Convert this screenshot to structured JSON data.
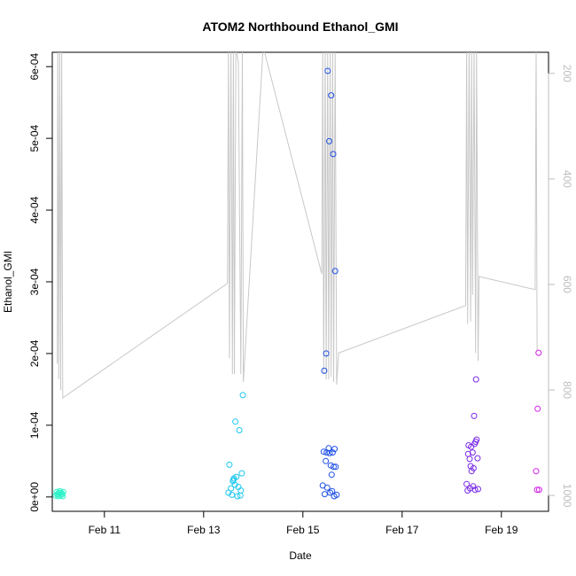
{
  "chart_data": {
    "type": "scatter",
    "title": "ATOM2 Northbound Ethanol_GMI",
    "xlabel": "Date",
    "ylabel": "Ethanol_GMI",
    "x_ticks": [
      "Feb 11",
      "Feb 13",
      "Feb 15",
      "Feb 17",
      "Feb 19"
    ],
    "y_ticks": [
      "0e+00",
      "1e-04",
      "2e-04",
      "3e-04",
      "4e-04",
      "5e-04",
      "6e-04"
    ],
    "y2_ticks": [
      "200",
      "400",
      "600",
      "800",
      "1000"
    ],
    "xlim": [
      "Feb 9.95",
      "Feb 19.95"
    ],
    "ylim": [
      -2e-05,
      0.00062
    ],
    "y2lim": [
      1030,
      160
    ],
    "y2_reversed": true,
    "grid": false,
    "points_by_flight": [
      {
        "color": "#2ef2c8",
        "points": [
          [
            "Feb 10.02",
            2e-06
          ],
          [
            "Feb 10.04",
            7e-06
          ],
          [
            "Feb 10.05",
            4e-06
          ],
          [
            "Feb 10.07",
            1e-06
          ],
          [
            "Feb 10.08",
            6e-06
          ],
          [
            "Feb 10.09",
            3e-06
          ],
          [
            "Feb 10.10",
            8e-06
          ],
          [
            "Feb 10.11",
            5e-06
          ],
          [
            "Feb 10.12",
            2e-06
          ],
          [
            "Feb 10.13",
            6e-06
          ],
          [
            "Feb 10.15",
            4e-06
          ],
          [
            "Feb 10.16",
            1e-06
          ],
          [
            "Feb 10.17",
            7e-06
          ]
        ]
      },
      {
        "color": "#1ec8f0",
        "points": [
          [
            "Feb 13.50",
            6e-06
          ],
          [
            "Feb 13.52",
            4.5e-05
          ],
          [
            "Feb 13.55",
            1.2e-05
          ],
          [
            "Feb 13.57",
            3e-06
          ],
          [
            "Feb 13.59",
            2.2e-05
          ],
          [
            "Feb 13.61",
            2.6e-05
          ],
          [
            "Feb 13.63",
            1.7e-05
          ],
          [
            "Feb 13.64",
            0.000105
          ],
          [
            "Feb 13.66",
            2.8e-05
          ],
          [
            "Feb 13.68",
            1e-06
          ],
          [
            "Feb 13.70",
            1.4e-05
          ],
          [
            "Feb 13.72",
            9.3e-05
          ],
          [
            "Feb 13.74",
            2e-06
          ],
          [
            "Feb 13.77",
            3.3e-05
          ],
          [
            "Feb 13.79",
            0.000142
          ],
          [
            "Feb 13.75",
            9e-06
          ],
          [
            "Feb 13.60",
            2.4e-05
          ]
        ]
      },
      {
        "color": "#1e50e6",
        "points": [
          [
            "Feb 15.40",
            1.6e-05
          ],
          [
            "Feb 15.42",
            6.3e-05
          ],
          [
            "Feb 15.43",
            0.000176
          ],
          [
            "Feb 15.44",
            4e-06
          ],
          [
            "Feb 15.46",
            5e-05
          ],
          [
            "Feb 15.47",
            0.0002
          ],
          [
            "Feb 15.48",
            6.2e-05
          ],
          [
            "Feb 15.49",
            1.3e-05
          ],
          [
            "Feb 15.50",
            0.000594
          ],
          [
            "Feb 15.52",
            6.8e-05
          ],
          [
            "Feb 15.53",
            0.000496
          ],
          [
            "Feb 15.54",
            6.1e-05
          ],
          [
            "Feb 15.55",
            6e-06
          ],
          [
            "Feb 15.56",
            4.4e-05
          ],
          [
            "Feb 15.57",
            0.00056
          ],
          [
            "Feb 15.58",
            3.1e-05
          ],
          [
            "Feb 15.60",
            6.2e-05
          ],
          [
            "Feb 15.61",
            0.000478
          ],
          [
            "Feb 15.62",
            4.2e-05
          ],
          [
            "Feb 15.63",
            1e-06
          ],
          [
            "Feb 15.64",
            6.7e-05
          ],
          [
            "Feb 15.65",
            0.000315
          ],
          [
            "Feb 15.66",
            4.2e-05
          ],
          [
            "Feb 15.68",
            3e-06
          ],
          [
            "Feb 15.59",
            8e-06
          ]
        ]
      },
      {
        "color": "#7a2ae6",
        "points": [
          [
            "Feb 18.30",
            1.8e-05
          ],
          [
            "Feb 18.32",
            9e-06
          ],
          [
            "Feb 18.33",
            6e-05
          ],
          [
            "Feb 18.34",
            7.2e-05
          ],
          [
            "Feb 18.36",
            5.3e-05
          ],
          [
            "Feb 18.37",
            1.2e-05
          ],
          [
            "Feb 18.38",
            4.3e-05
          ],
          [
            "Feb 18.39",
            7e-05
          ],
          [
            "Feb 18.40",
            3.6e-05
          ],
          [
            "Feb 18.42",
            6.2e-05
          ],
          [
            "Feb 18.43",
            1.5e-05
          ],
          [
            "Feb 18.44",
            4e-05
          ],
          [
            "Feb 18.45",
            0.000113
          ],
          [
            "Feb 18.46",
            7.4e-05
          ],
          [
            "Feb 18.48",
            7.7e-05
          ],
          [
            "Feb 18.49",
            0.000164
          ],
          [
            "Feb 18.50",
            8e-05
          ],
          [
            "Feb 18.52",
            5.4e-05
          ],
          [
            "Feb 18.53",
            1.1e-05
          ],
          [
            "Feb 18.47",
            1e-05
          ]
        ]
      },
      {
        "color": "#d21ee6",
        "points": [
          [
            "Feb 19.70",
            3.6e-05
          ],
          [
            "Feb 19.72",
            1e-05
          ],
          [
            "Feb 19.73",
            0.000123
          ],
          [
            "Feb 19.75",
            0.000201
          ],
          [
            "Feb 19.76",
            1e-05
          ]
        ]
      }
    ],
    "altitude_line": {
      "color": "#c8c8c8",
      "axis": "right",
      "points": [
        [
          "Feb 10.05",
          750
        ],
        [
          "Feb 10.06",
          150
        ],
        [
          "Feb 10.08",
          780
        ],
        [
          "Feb 10.10",
          150
        ],
        [
          "Feb 10.12",
          800
        ],
        [
          "Feb 10.14",
          150
        ],
        [
          "Feb 10.16",
          815
        ],
        [
          "Feb 13.48",
          598
        ],
        [
          "Feb 13.50",
          150
        ],
        [
          "Feb 13.52",
          740
        ],
        [
          "Feb 13.55",
          150
        ],
        [
          "Feb 13.58",
          770
        ],
        [
          "Feb 13.60",
          150
        ],
        [
          "Feb 13.62",
          770
        ],
        [
          "Feb 13.65",
          150
        ],
        [
          "Feb 13.70",
          180
        ],
        [
          "Feb 13.75",
          770
        ],
        [
          "Feb 13.78",
          150
        ],
        [
          "Feb 13.80",
          785
        ],
        [
          "Feb 14.20",
          150
        ],
        [
          "Feb 15.38",
          580
        ],
        [
          "Feb 15.40",
          150
        ],
        [
          "Feb 15.42",
          770
        ],
        [
          "Feb 15.45",
          150
        ],
        [
          "Feb 15.47",
          780
        ],
        [
          "Feb 15.50",
          150
        ],
        [
          "Feb 15.52",
          780
        ],
        [
          "Feb 15.55",
          150
        ],
        [
          "Feb 15.57",
          775
        ],
        [
          "Feb 15.60",
          150
        ],
        [
          "Feb 15.62",
          785
        ],
        [
          "Feb 15.65",
          150
        ],
        [
          "Feb 15.68",
          790
        ],
        [
          "Feb 15.72",
          730
        ],
        [
          "Feb 18.28",
          640
        ],
        [
          "Feb 18.30",
          150
        ],
        [
          "Feb 18.32",
          675
        ],
        [
          "Feb 18.35",
          150
        ],
        [
          "Feb 18.38",
          670
        ],
        [
          "Feb 18.40",
          150
        ],
        [
          "Feb 18.42",
          620
        ],
        [
          "Feb 18.45",
          150
        ],
        [
          "Feb 18.48",
          730
        ],
        [
          "Feb 18.50",
          150
        ],
        [
          "Feb 18.53",
          745
        ],
        [
          "Feb 18.55",
          585
        ],
        [
          "Feb 19.68",
          610
        ],
        [
          "Feb 19.70",
          150
        ],
        [
          "Feb 19.72",
          725
        ]
      ]
    }
  }
}
